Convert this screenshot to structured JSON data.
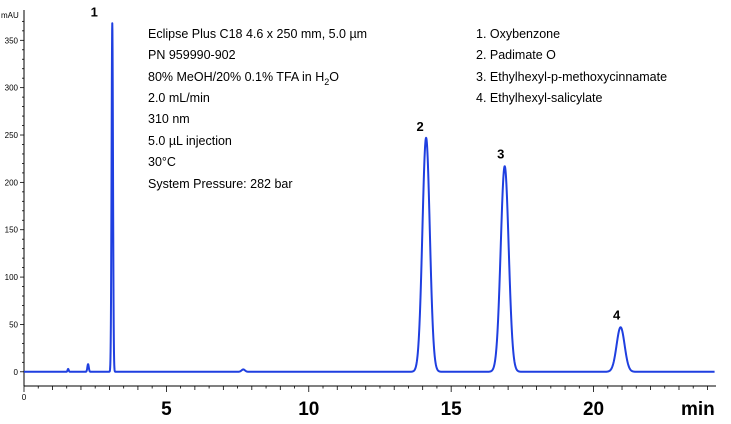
{
  "chart_data": {
    "type": "line",
    "title": "",
    "y_unit": "mAU",
    "x_unit": "min",
    "xlim": [
      0,
      24.3
    ],
    "ylim": [
      -15,
      382
    ],
    "x_ticks": [
      0,
      5,
      10,
      15,
      20
    ],
    "x_tick_labels": [
      "0",
      "5",
      "10",
      "15",
      "20"
    ],
    "y_ticks": [
      0,
      50,
      100,
      150,
      200,
      250,
      300,
      350
    ],
    "y_tick_labels": [
      "0",
      "50",
      "100",
      "150",
      "200",
      "250",
      "300",
      "350"
    ],
    "grid": false,
    "line_color": "#1f3fe0",
    "conditions": [
      "Eclipse Plus C18 4.6 x 250 mm, 5.0 µm",
      "PN 959990-902",
      "80% MeOH/20% 0.1% TFA in H",
      "2.0 mL/min",
      "310 nm",
      "5.0 µL injection",
      "30°C",
      "System Pressure: 282 bar"
    ],
    "conditions_h2o_tail": {
      "sub": "2",
      "rest": "O"
    },
    "legend": [
      "1. Oxybenzone",
      "2. Padimate O",
      "3. Ethylhexyl-p-methoxycinnamate",
      "4. Ethylhexyl-salicylate"
    ],
    "peaks": [
      {
        "label": "1",
        "rt": 3.1,
        "height": 368,
        "sigma": 0.025
      },
      {
        "label": "2",
        "rt": 14.12,
        "height": 247,
        "sigma": 0.13
      },
      {
        "label": "3",
        "rt": 16.88,
        "height": 217,
        "sigma": 0.14
      },
      {
        "label": "4",
        "rt": 20.95,
        "height": 47,
        "sigma": 0.14
      }
    ],
    "minor_peaks": [
      {
        "rt": 1.55,
        "height": 3,
        "sigma": 0.02
      },
      {
        "rt": 2.25,
        "height": 8,
        "sigma": 0.025
      },
      {
        "rt": 7.7,
        "height": 2.5,
        "sigma": 0.06
      }
    ]
  }
}
